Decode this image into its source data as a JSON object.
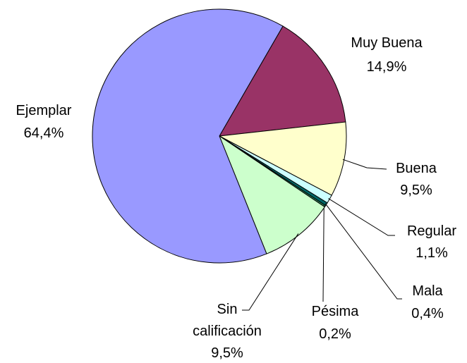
{
  "chart_data": {
    "type": "pie",
    "categories": [
      "Muy Buena",
      "Buena",
      "Regular",
      "Mala",
      "Pésima",
      "Sin calificación",
      "Ejemplar"
    ],
    "values": [
      14.9,
      9.5,
      1.1,
      0.4,
      0.2,
      9.5,
      64.4
    ],
    "value_labels": [
      "14,9%",
      "9,5%",
      "1,1%",
      "0,4%",
      "0,2%",
      "9,5%",
      "64,4%"
    ],
    "colors": [
      "#993366",
      "#ffffcc",
      "#ccffff",
      "#006666",
      "#339966",
      "#ccffcc",
      "#9999ff"
    ]
  }
}
